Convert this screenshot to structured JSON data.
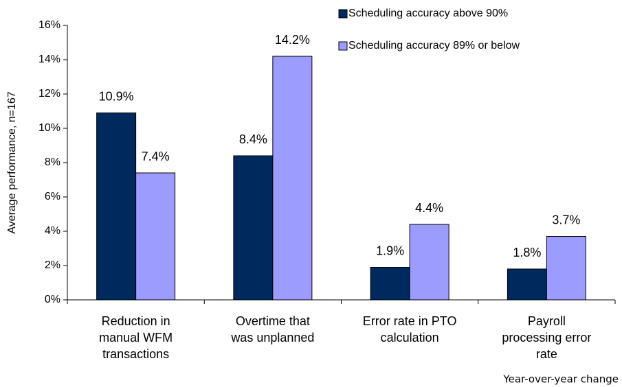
{
  "chart_data": {
    "type": "bar",
    "y_label": "Average performance, n=167",
    "note": "Year-over-year change",
    "categories": [
      [
        "Reduction in",
        "manual WFM",
        "transactions"
      ],
      [
        "Overtime that",
        "was unplanned"
      ],
      [
        "Error rate in PTO",
        "calculation"
      ],
      [
        "Payroll",
        "processing error",
        "rate"
      ]
    ],
    "series": [
      {
        "name": "Scheduling accuracy above 90%",
        "color": "#002a5e",
        "values": [
          10.9,
          8.4,
          1.9,
          1.8
        ],
        "value_labels": [
          "10.9%",
          "8.4%",
          "1.9%",
          "1.8%"
        ]
      },
      {
        "name": "Scheduling accuracy 89% or below",
        "color": "#9c9cff",
        "values": [
          7.4,
          14.2,
          4.4,
          3.7
        ],
        "value_labels": [
          "7.4%",
          "14.2%",
          "4.4%",
          "3.7%"
        ]
      }
    ],
    "ylim": [
      0,
      16
    ],
    "yticks": [
      {
        "value": 0,
        "label": "0%"
      },
      {
        "value": 2,
        "label": "2%"
      },
      {
        "value": 4,
        "label": "4%"
      },
      {
        "value": 6,
        "label": "6%"
      },
      {
        "value": 8,
        "label": "8%"
      },
      {
        "value": 10,
        "label": "10%"
      },
      {
        "value": 12,
        "label": "12%"
      },
      {
        "value": 14,
        "label": "14%"
      },
      {
        "value": 16,
        "label": "16%"
      }
    ],
    "legend": "top-right"
  }
}
